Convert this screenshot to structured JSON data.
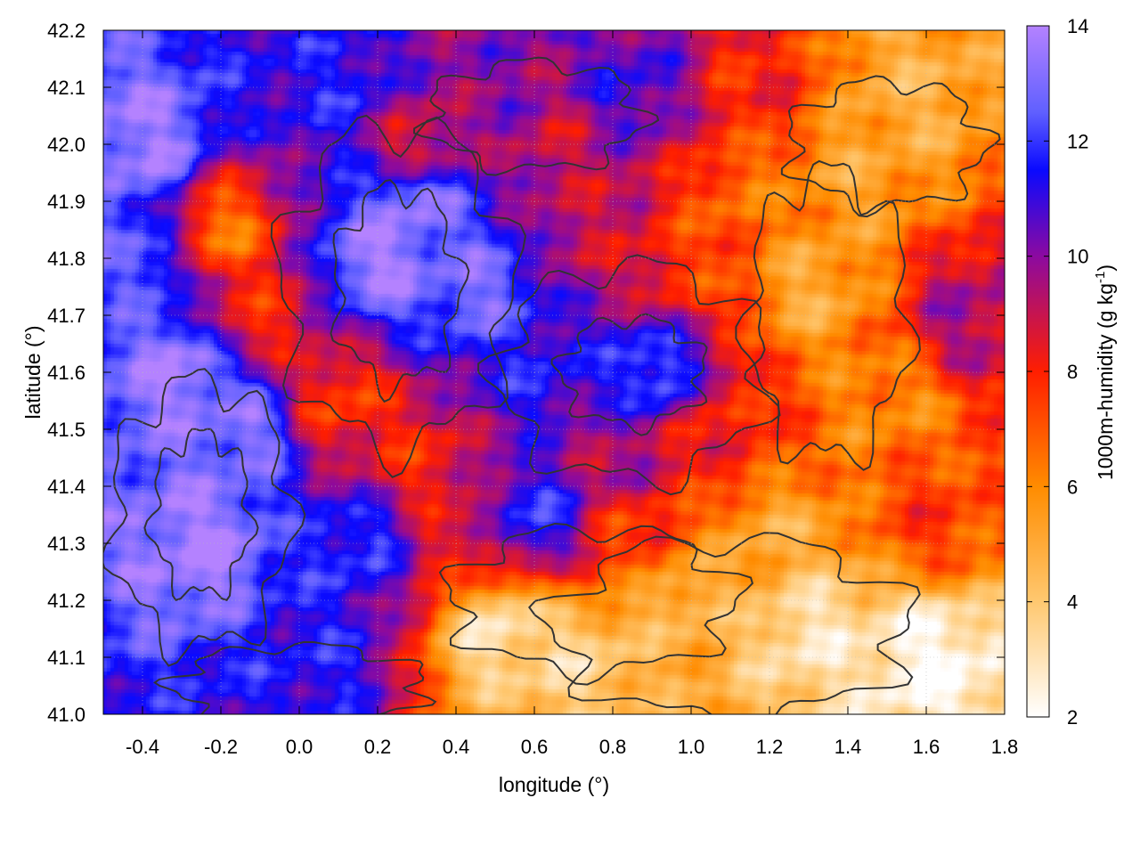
{
  "chart_data": {
    "type": "heatmap",
    "xlabel": "longitude (°)",
    "ylabel": "latitude (°)",
    "colorbar_label": "1000m-humidity (g kg⁻¹)",
    "colorbar_label_parts": {
      "base": "1000m-humidity (g kg",
      "sup": "-1",
      "close": ")"
    },
    "xlim": [
      -0.5,
      1.8
    ],
    "ylim": [
      41.0,
      42.2
    ],
    "zlim": [
      2,
      14
    ],
    "x_ticks": [
      -0.4,
      -0.2,
      0.0,
      0.2,
      0.4,
      0.6,
      0.8,
      1.0,
      1.2,
      1.4,
      1.6,
      1.8
    ],
    "x_tick_labels": [
      "-0.4",
      "-0.2",
      "0.0",
      "0.2",
      "0.4",
      "0.6",
      "0.8",
      "1.0",
      "1.2",
      "1.4",
      "1.6",
      "1.8"
    ],
    "y_ticks": [
      41.0,
      41.1,
      41.2,
      41.3,
      41.4,
      41.5,
      41.6,
      41.7,
      41.8,
      41.9,
      42.0,
      42.1,
      42.2
    ],
    "y_tick_labels": [
      "41.0",
      "41.1",
      "41.2",
      "41.3",
      "41.4",
      "41.5",
      "41.6",
      "41.7",
      "41.8",
      "41.9",
      "42.0",
      "42.1",
      "42.2"
    ],
    "colorbar_ticks": [
      2,
      4,
      6,
      8,
      10,
      12,
      14
    ],
    "colorbar_tick_labels": [
      "2",
      "4",
      "6",
      "8",
      "10",
      "12",
      "14"
    ],
    "colormap": [
      {
        "value": 2,
        "color": "#ffffff"
      },
      {
        "value": 4,
        "color": "#ffc870"
      },
      {
        "value": 6,
        "color": "#ff8c00"
      },
      {
        "value": 8,
        "color": "#ff1e00"
      },
      {
        "value": 10,
        "color": "#8c0aa0"
      },
      {
        "value": 11.5,
        "color": "#0a0aff"
      },
      {
        "value": 12.5,
        "color": "#6060ff"
      },
      {
        "value": 14,
        "color": "#b482ff"
      }
    ],
    "grid": true,
    "contour_color": "#333333",
    "humidity_regions": [
      {
        "lon": -0.3,
        "lat": 41.6,
        "value": 13.8
      },
      {
        "lon": -0.25,
        "lat": 41.3,
        "value": 13.8
      },
      {
        "lon": -0.15,
        "lat": 41.5,
        "value": 13.2
      },
      {
        "lon": -0.4,
        "lat": 42.0,
        "value": 13.6
      },
      {
        "lon": -0.4,
        "lat": 41.8,
        "value": 12.5
      },
      {
        "lon": 0.2,
        "lat": 41.8,
        "value": 13.8
      },
      {
        "lon": 0.3,
        "lat": 41.9,
        "value": 13.5
      },
      {
        "lon": 0.45,
        "lat": 41.75,
        "value": 13.0
      },
      {
        "lon": 0.1,
        "lat": 42.1,
        "value": 11.5
      },
      {
        "lon": 0.5,
        "lat": 42.1,
        "value": 10.0
      },
      {
        "lon": 0.85,
        "lat": 42.1,
        "value": 11.0
      },
      {
        "lon": 0.6,
        "lat": 41.6,
        "value": 11.5
      },
      {
        "lon": 0.9,
        "lat": 41.6,
        "value": 12.5
      },
      {
        "lon": 0.8,
        "lat": 41.45,
        "value": 9.5
      },
      {
        "lon": 0.6,
        "lat": 41.35,
        "value": 12.0
      },
      {
        "lon": 0.15,
        "lat": 41.3,
        "value": 12.0
      },
      {
        "lon": 0.05,
        "lat": 41.1,
        "value": 11.5
      },
      {
        "lon": -0.1,
        "lat": 41.7,
        "value": 8.0
      },
      {
        "lon": -0.2,
        "lat": 41.85,
        "value": 6.5
      },
      {
        "lon": 0.1,
        "lat": 41.55,
        "value": 7.5
      },
      {
        "lon": 0.3,
        "lat": 41.45,
        "value": 8.0
      },
      {
        "lon": 0.4,
        "lat": 41.3,
        "value": 8.5
      },
      {
        "lon": 0.5,
        "lat": 41.15,
        "value": 3.0
      },
      {
        "lon": 0.7,
        "lat": 41.1,
        "value": 3.5
      },
      {
        "lon": 0.95,
        "lat": 41.2,
        "value": 4.5
      },
      {
        "lon": 1.3,
        "lat": 41.15,
        "value": 3.0
      },
      {
        "lon": 1.6,
        "lat": 41.1,
        "value": 2.2
      },
      {
        "lon": 1.2,
        "lat": 41.3,
        "value": 5.0
      },
      {
        "lon": 1.3,
        "lat": 41.75,
        "value": 5.0
      },
      {
        "lon": 1.4,
        "lat": 41.95,
        "value": 5.2
      },
      {
        "lon": 1.55,
        "lat": 42.1,
        "value": 4.8
      },
      {
        "lon": 1.5,
        "lat": 41.55,
        "value": 6.0
      },
      {
        "lon": 1.7,
        "lat": 41.7,
        "value": 9.5
      },
      {
        "lon": 1.15,
        "lat": 41.9,
        "value": 6.5
      },
      {
        "lon": 1.0,
        "lat": 41.8,
        "value": 7.5
      },
      {
        "lon": 0.75,
        "lat": 41.85,
        "value": 9.0
      },
      {
        "lon": 0.85,
        "lat": 41.3,
        "value": 7.5
      },
      {
        "lon": 1.05,
        "lat": 41.5,
        "value": 8.0
      },
      {
        "lon": 1.6,
        "lat": 41.35,
        "value": 7.5
      },
      {
        "lon": 0.3,
        "lat": 42.0,
        "value": 8.5
      },
      {
        "lon": 0.65,
        "lat": 42.0,
        "value": 9.0
      },
      {
        "lon": 1.15,
        "lat": 42.1,
        "value": 8.0
      }
    ]
  }
}
